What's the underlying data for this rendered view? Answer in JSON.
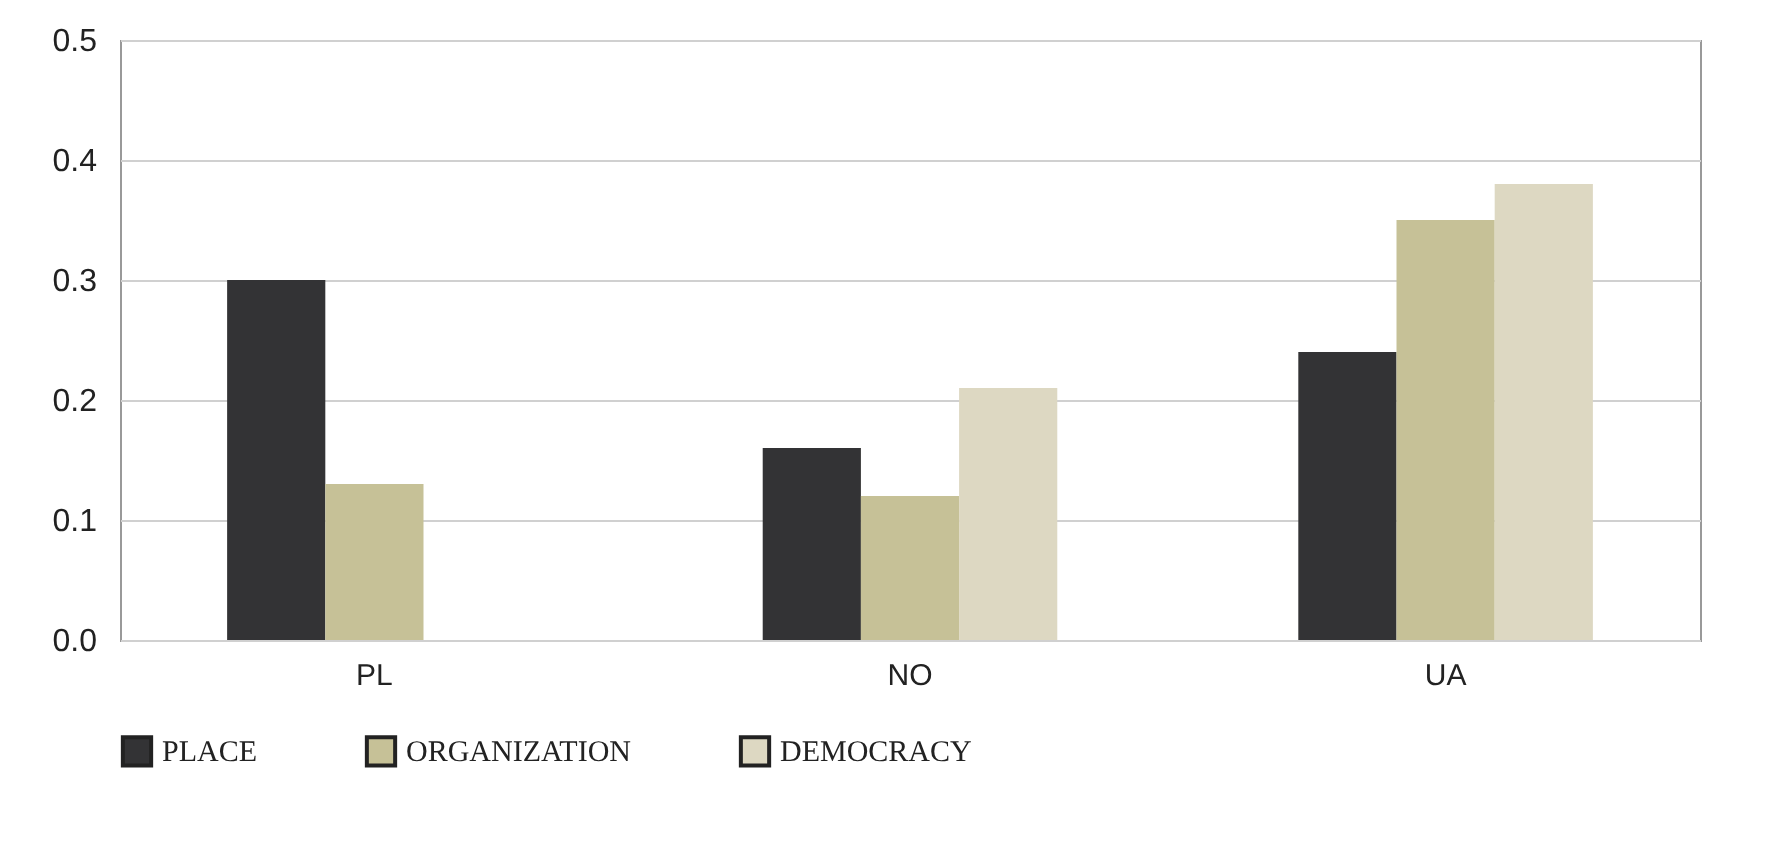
{
  "chart_data": {
    "type": "bar",
    "categories": [
      "PL",
      "NO",
      "UA"
    ],
    "series": [
      {
        "name": "PLACE",
        "color": "#333335",
        "values": [
          0.3,
          0.16,
          0.24
        ]
      },
      {
        "name": "ORGANIZATION",
        "color": "#c6c197",
        "values": [
          0.13,
          0.12,
          0.35
        ]
      },
      {
        "name": "DEMOCRACY",
        "color": "#ddd8c2",
        "values": [
          0,
          0.21,
          0.38
        ]
      }
    ],
    "ylim": [
      0,
      0.5
    ],
    "yticks": [
      {
        "value": 0,
        "label": "0.0"
      },
      0.1,
      0.2,
      0.3,
      0.4,
      0.5
    ],
    "grid": "y",
    "legend": "bottom left"
  }
}
